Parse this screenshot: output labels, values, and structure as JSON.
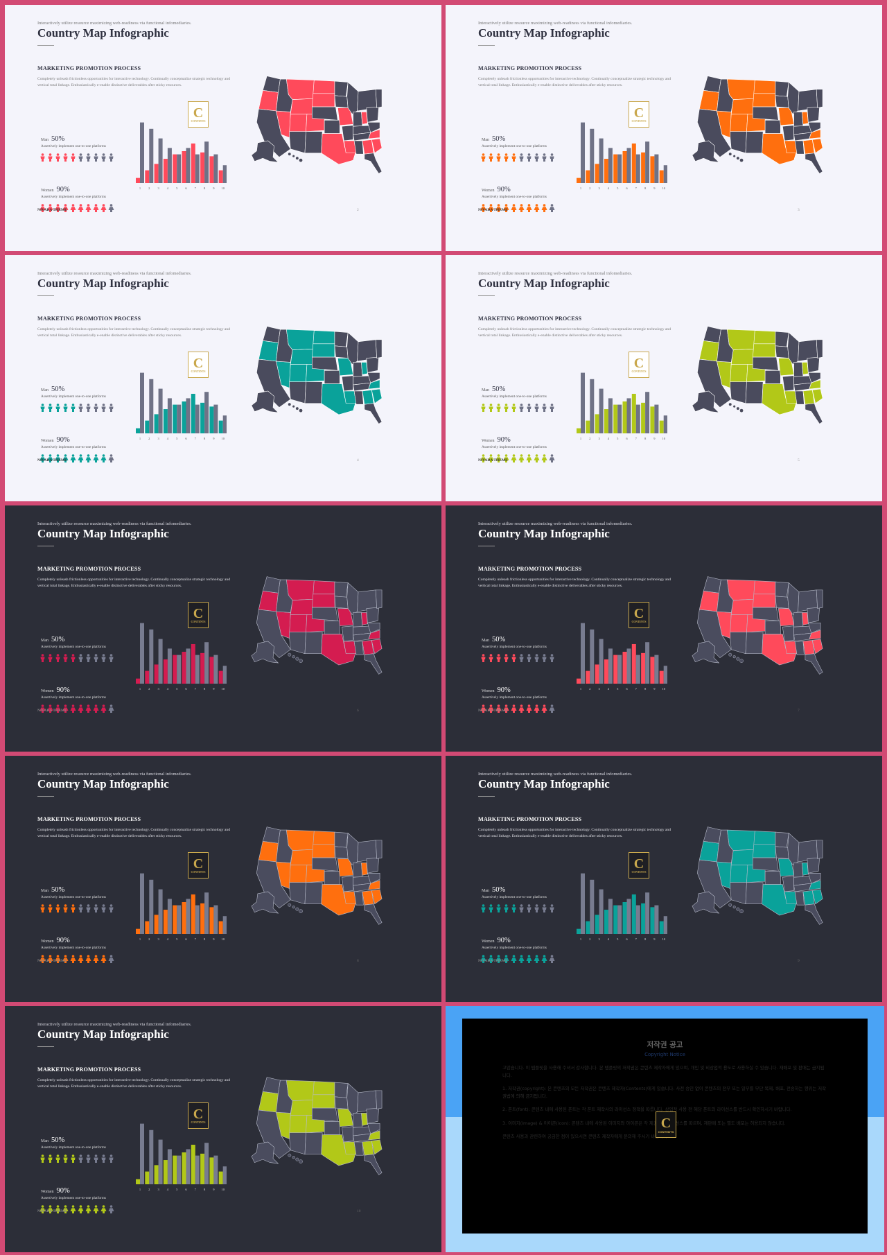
{
  "slide_text": {
    "subtitle": "Interactively utilize resource maximizing web-readiness via functional infomediaries.",
    "title": "Country Map Infographic",
    "section": "MARKETING PROMOTION PROCESS",
    "description": "Completely unleash frictionless opportunities for interactive technology. Continually conceptualize strategic technology and vertical total linkage. Enthusiastically e-enable distinctive deliverables after sticky resources.",
    "man_label": "Man",
    "man_value": "50%",
    "man_desc": "Assertively implement one-to-one platforms",
    "women_label": "Women",
    "women_value": "90%",
    "women_desc": "Assertively implement one-to-one platforms",
    "footer": "NIVADA THEME",
    "logo_letter": "C",
    "logo_text": "CONTENTS"
  },
  "man_filled": 5,
  "man_total": 10,
  "women_filled": 9,
  "women_total": 10,
  "chart_data": {
    "type": "bar",
    "categories": [
      "1",
      "2",
      "3",
      "4",
      "5",
      "6",
      "7",
      "8",
      "9",
      "10"
    ],
    "series": [
      {
        "values": [
          8,
          20,
          30,
          38,
          45,
          50,
          62,
          48,
          42,
          20
        ]
      },
      {
        "values": [
          95,
          85,
          70,
          55,
          45,
          55,
          45,
          65,
          45,
          28
        ]
      }
    ],
    "ylim": [
      0,
      100
    ]
  },
  "slides": [
    {
      "theme": "light",
      "accent": "#ff4a5b",
      "page": "2"
    },
    {
      "theme": "light",
      "accent": "#ff6f0e",
      "page": "3"
    },
    {
      "theme": "light",
      "accent": "#0aa29a",
      "page": "4"
    },
    {
      "theme": "light",
      "accent": "#b2c818",
      "page": "5"
    },
    {
      "theme": "dark",
      "accent": "#d41c50",
      "page": "6"
    },
    {
      "theme": "dark",
      "accent": "#ff4a5b",
      "page": "7"
    },
    {
      "theme": "dark",
      "accent": "#ff6f0e",
      "page": "8"
    },
    {
      "theme": "dark",
      "accent": "#0aa29a",
      "page": "9"
    },
    {
      "theme": "dark",
      "accent": "#b2c818",
      "page": "10"
    }
  ],
  "copyright": {
    "title": "저작권 공고",
    "subtitle": "Copyright Notice",
    "intro": "고맙습니다. 이 템플릿을 사용해 주셔서 감사합니다. 본 템플릿의 저작권은 콘텐츠 제작자에게 있으며, 개인 및 비상업적 용도로 사용하실 수 있습니다. 재배포 및 판매는 금지됩니다.",
    "p1": "1. 저작권(copyright): 본 콘텐츠의 모든 저작권은 콘텐츠 제작자(Contents)에게 있습니다. 사전 승인 없이 콘텐츠의 전부 또는 일부를 무단 복제, 배포, 전송하는 행위는 저작권법에 의해 금지됩니다.",
    "p2": "2. 폰트(font): 콘텐츠 내에 사용된 폰트는 각 폰트 제작사의 라이선스 정책을 따릅니다. 상업적 사용 전 해당 폰트의 라이선스를 반드시 확인하시기 바랍니다.",
    "p3": "3. 이미지(image) & 아이콘(icon): 콘텐츠 내에 사용된 이미지와 아이콘은 각 제공처의 라이선스를 따르며, 재판매 또는 별도 배포는 허용되지 않습니다.",
    "outro": "콘텐츠 사용과 관련하여 궁금한 점이 있으시면 콘텐츠 제작자에게 문의해 주시기 바랍니다."
  }
}
